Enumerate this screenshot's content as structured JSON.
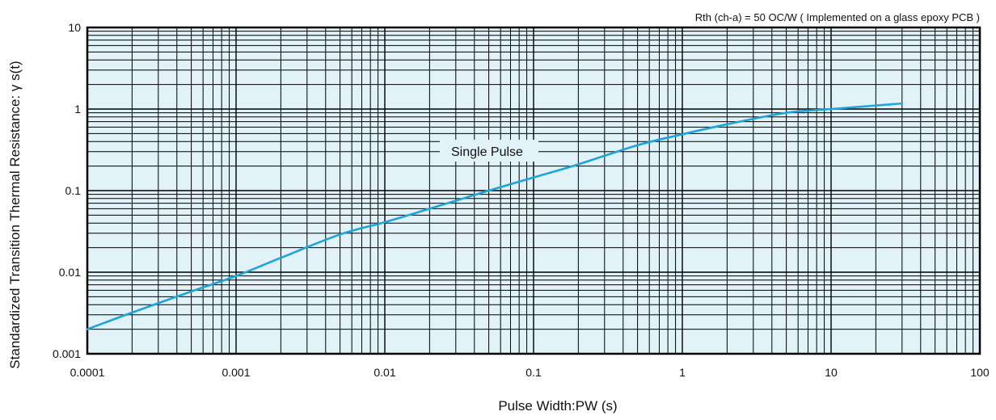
{
  "chart_data": {
    "type": "line",
    "x_scale": "log",
    "y_scale": "log",
    "xlabel": "Pulse Width:PW  (s)",
    "ylabel": "Standardized Transition Thermal Resistance: γ s(t)",
    "xlim": [
      0.0001,
      100
    ],
    "ylim": [
      0.001,
      10
    ],
    "x_ticks": [
      "0.0001",
      "0.001",
      "0.01",
      "0.1",
      "1",
      "10",
      "100"
    ],
    "y_ticks": [
      "0.001",
      "0.01",
      "0.1",
      "1",
      "10"
    ],
    "note": "Rth (ch-a) = 50 OC/W ( Implemented on a glass epoxy PCB )",
    "grid": true,
    "plot_background": "#e1f2f9",
    "series": [
      {
        "name": "Single Pulse",
        "color": "#1aa6dc",
        "x": [
          0.0001,
          0.0002,
          0.0005,
          0.001,
          0.002,
          0.005,
          0.01,
          0.02,
          0.05,
          0.1,
          0.2,
          0.5,
          1,
          2,
          5,
          10,
          30
        ],
        "y": [
          0.002,
          0.0032,
          0.0058,
          0.009,
          0.015,
          0.029,
          0.041,
          0.06,
          0.1,
          0.145,
          0.21,
          0.36,
          0.49,
          0.65,
          0.9,
          1.0,
          1.17
        ]
      }
    ]
  }
}
